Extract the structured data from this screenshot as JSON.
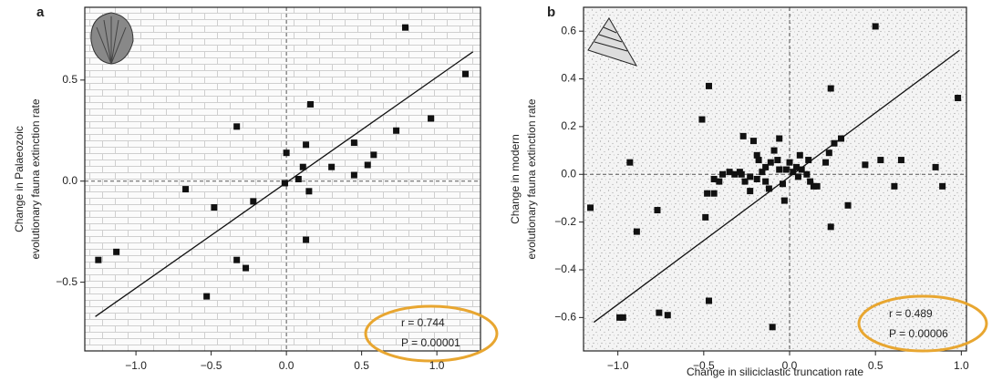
{
  "chart_data": [
    {
      "type": "scatter",
      "panel": "a",
      "ylabel": [
        "Change in Palaeozoic",
        "evolutionary fauna extinction rate"
      ],
      "x": [
        -1.25,
        -1.13,
        -0.67,
        -0.48,
        -0.53,
        -0.33,
        -0.33,
        -0.27,
        -0.22,
        -0.01,
        0.0,
        0.08,
        0.11,
        0.13,
        0.16,
        0.15,
        0.13,
        0.3,
        0.45,
        0.45,
        0.54,
        0.58,
        0.73,
        0.79,
        0.96,
        1.19
      ],
      "values": [
        -0.39,
        -0.35,
        -0.04,
        -0.13,
        -0.57,
        0.27,
        -0.39,
        -0.43,
        -0.1,
        -0.01,
        0.14,
        0.01,
        0.07,
        0.18,
        0.38,
        -0.05,
        -0.29,
        0.07,
        0.19,
        0.03,
        0.08,
        0.13,
        0.25,
        0.76,
        0.31,
        0.53
      ],
      "color": "#111111",
      "fit": {
        "x": [
          -1.27,
          1.24
        ],
        "values": [
          -0.67,
          0.64
        ]
      },
      "xlim": [
        -1.34,
        1.29
      ],
      "xticks": [
        {
          "value": -1.0,
          "label": "−1.0"
        },
        {
          "value": -0.5,
          "label": "−0.5"
        },
        {
          "value": 0.0,
          "label": "0.0"
        },
        0.5,
        {
          "value": 1.0,
          "label": "1.0"
        }
      ],
      "ylim": [
        -0.84,
        0.86
      ],
      "yticks": [
        {
          "value": -0.5,
          "label": "−0.5"
        },
        {
          "value": 0.0,
          "label": "0.0"
        },
        0.5
      ],
      "zero_lines": true,
      "annotations": [
        "r = 0.744",
        "P = 0.00001"
      ]
    },
    {
      "type": "scatter",
      "panel": "b",
      "xlabel": "Change in siliciclastic truncation rate",
      "ylabel": [
        "Change in modern",
        "evolutionary fauna extinction rate"
      ],
      "x": [
        -1.16,
        -0.93,
        -0.89,
        -0.77,
        -0.99,
        -0.97,
        -0.76,
        -0.71,
        -0.47,
        -0.51,
        -0.48,
        -0.49,
        -0.47,
        -0.44,
        -0.44,
        -0.41,
        -0.39,
        -0.35,
        -0.32,
        -0.29,
        -0.28,
        -0.26,
        -0.27,
        -0.21,
        -0.19,
        -0.18,
        -0.23,
        -0.19,
        -0.16,
        -0.14,
        -0.12,
        -0.23,
        -0.14,
        -0.11,
        -0.09,
        -0.07,
        -0.06,
        -0.04,
        -0.03,
        -0.06,
        -0.1,
        -0.02,
        0.0,
        0.02,
        0.04,
        0.05,
        0.06,
        0.07,
        0.1,
        0.12,
        0.14,
        0.16,
        0.11,
        0.21,
        0.23,
        0.26,
        0.3,
        0.24,
        0.24,
        0.34,
        0.44,
        0.53,
        0.61,
        0.65,
        0.5,
        0.85,
        0.89,
        0.98
      ],
      "values": [
        -0.14,
        0.05,
        -0.24,
        -0.15,
        -0.6,
        -0.6,
        -0.58,
        -0.59,
        0.37,
        0.23,
        -0.08,
        -0.18,
        -0.53,
        -0.02,
        -0.08,
        -0.03,
        0.0,
        0.01,
        0.0,
        0.01,
        0.0,
        -0.03,
        0.16,
        0.14,
        0.08,
        0.06,
        -0.01,
        -0.02,
        0.01,
        -0.03,
        -0.06,
        -0.07,
        0.03,
        0.05,
        0.1,
        0.06,
        0.02,
        -0.04,
        -0.11,
        0.15,
        -0.64,
        0.02,
        0.05,
        0.01,
        0.03,
        -0.01,
        0.08,
        0.02,
        0.0,
        -0.03,
        -0.05,
        -0.05,
        0.06,
        0.05,
        0.09,
        0.13,
        0.15,
        0.36,
        -0.22,
        -0.13,
        0.04,
        0.06,
        -0.05,
        0.06,
        0.62,
        0.03,
        -0.05,
        0.32
      ],
      "color": "#111111",
      "fit": {
        "x": [
          -1.14,
          0.99
        ],
        "values": [
          -0.62,
          0.52
        ]
      },
      "xlim": [
        -1.2,
        1.03
      ],
      "xticks": [
        {
          "value": -1.0,
          "label": "−1.0"
        },
        {
          "value": -0.5,
          "label": "−0.5"
        },
        {
          "value": 0.0,
          "label": "0.0"
        },
        0.5,
        {
          "value": 1.0,
          "label": "1.0"
        }
      ],
      "ylim": [
        -0.74,
        0.7
      ],
      "yticks": [
        {
          "value": -0.6,
          "label": "−0.6"
        },
        {
          "value": -0.4,
          "label": "−0.4"
        },
        {
          "value": -0.2,
          "label": "−0.2"
        },
        {
          "value": 0.0,
          "label": "0.0"
        },
        0.2,
        0.4,
        0.6
      ],
      "zero_lines": true,
      "annotations": [
        "r = 0.489",
        "P = 0.00006"
      ]
    }
  ]
}
